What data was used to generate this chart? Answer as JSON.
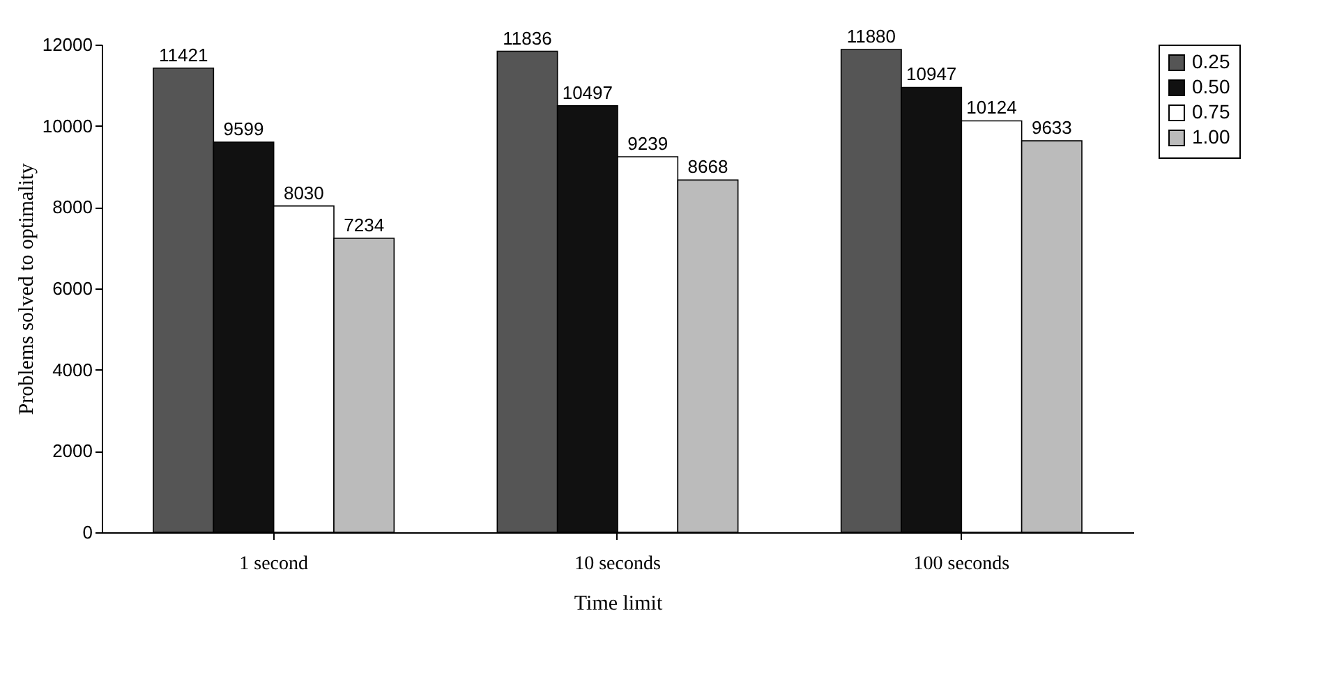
{
  "chart_data": {
    "type": "bar",
    "xlabel": "Time limit",
    "ylabel": "Problems solved to optimality",
    "categories": [
      "1 second",
      "10 seconds",
      "100 seconds"
    ],
    "series": [
      {
        "name": "0.25",
        "color": "#555555",
        "values": [
          11421,
          11836,
          11880
        ]
      },
      {
        "name": "0.50",
        "color": "#111111",
        "values": [
          9599,
          10497,
          10947
        ]
      },
      {
        "name": "0.75",
        "color": "#ffffff",
        "values": [
          8030,
          9239,
          10124
        ]
      },
      {
        "name": "1.00",
        "color": "#bbbbbb",
        "values": [
          7234,
          8668,
          9633
        ]
      }
    ],
    "ylim": [
      0,
      12000
    ],
    "yticks": [
      0,
      2000,
      4000,
      6000,
      8000,
      10000,
      12000
    ],
    "data_labels": true,
    "legend": "right",
    "grid": false
  }
}
